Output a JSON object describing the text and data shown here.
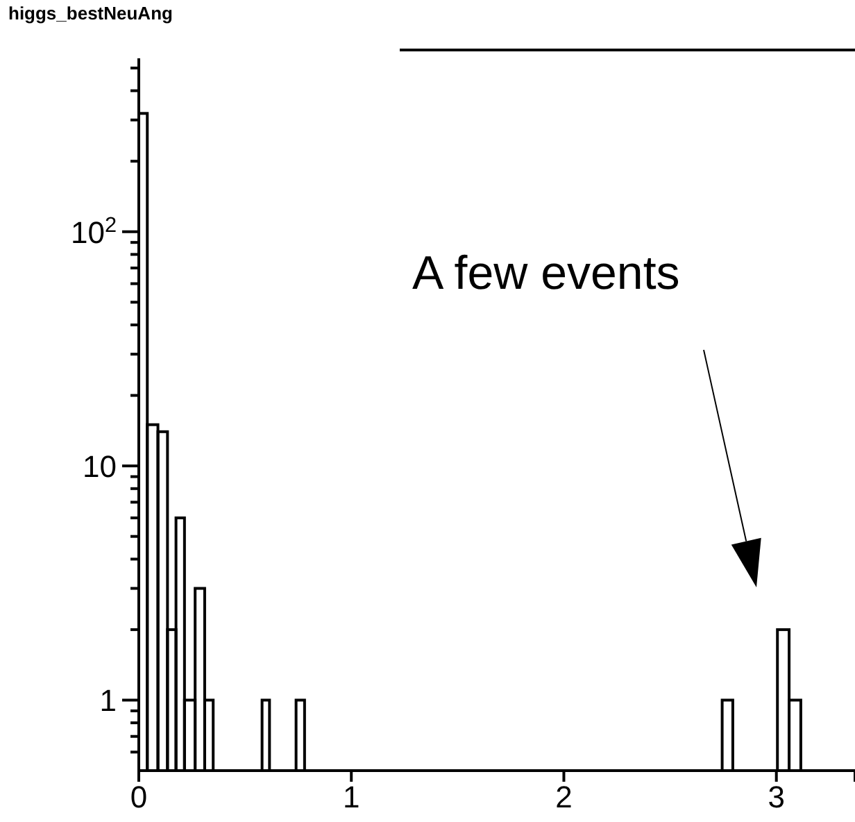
{
  "chart_data": {
    "type": "histogram",
    "title": "higgs_bestNeuAng",
    "bins": [
      0,
      0.04,
      0.09,
      0.135,
      0.175,
      0.215,
      0.265,
      0.31,
      0.35,
      0.58,
      0.615,
      0.74,
      0.78,
      2.745,
      2.795,
      3.005,
      3.06,
      3.115
    ],
    "values": [
      320,
      15,
      14,
      2,
      6,
      1,
      3,
      1,
      null,
      1,
      null,
      1,
      null,
      1,
      null,
      2,
      1
    ],
    "color": "#000000",
    "log": "y",
    "grid": false,
    "xlim": [
      0,
      3.37
    ],
    "xticks": [
      0,
      1,
      2,
      3
    ],
    "ylim": [
      0.5,
      550
    ],
    "yticks": [
      {
        "value": 0.6,
        "label": null
      },
      {
        "value": 0.7,
        "label": null
      },
      {
        "value": 0.8,
        "label": null
      },
      {
        "value": 0.9,
        "label": null
      },
      1,
      {
        "value": 2,
        "label": null
      },
      {
        "value": 3,
        "label": null
      },
      {
        "value": 4,
        "label": null
      },
      {
        "value": 5,
        "label": null
      },
      {
        "value": 6,
        "label": null
      },
      {
        "value": 7,
        "label": null
      },
      {
        "value": 8,
        "label": null
      },
      {
        "value": 9,
        "label": null
      },
      10,
      {
        "value": 20,
        "label": null
      },
      {
        "value": 30,
        "label": null
      },
      {
        "value": 40,
        "label": null
      },
      {
        "value": 50,
        "label": null
      },
      {
        "value": 60,
        "label": null
      },
      {
        "value": 70,
        "label": null
      },
      {
        "value": 80,
        "label": null
      },
      {
        "value": 90,
        "label": null
      },
      {
        "value": 100,
        "label": "10$^{2}$"
      },
      {
        "value": 200,
        "label": null
      },
      {
        "value": 300,
        "label": null
      },
      {
        "value": 400,
        "label": null
      },
      {
        "value": 500,
        "label": null
      }
    ],
    "annotations": [
      "A few events"
    ]
  }
}
